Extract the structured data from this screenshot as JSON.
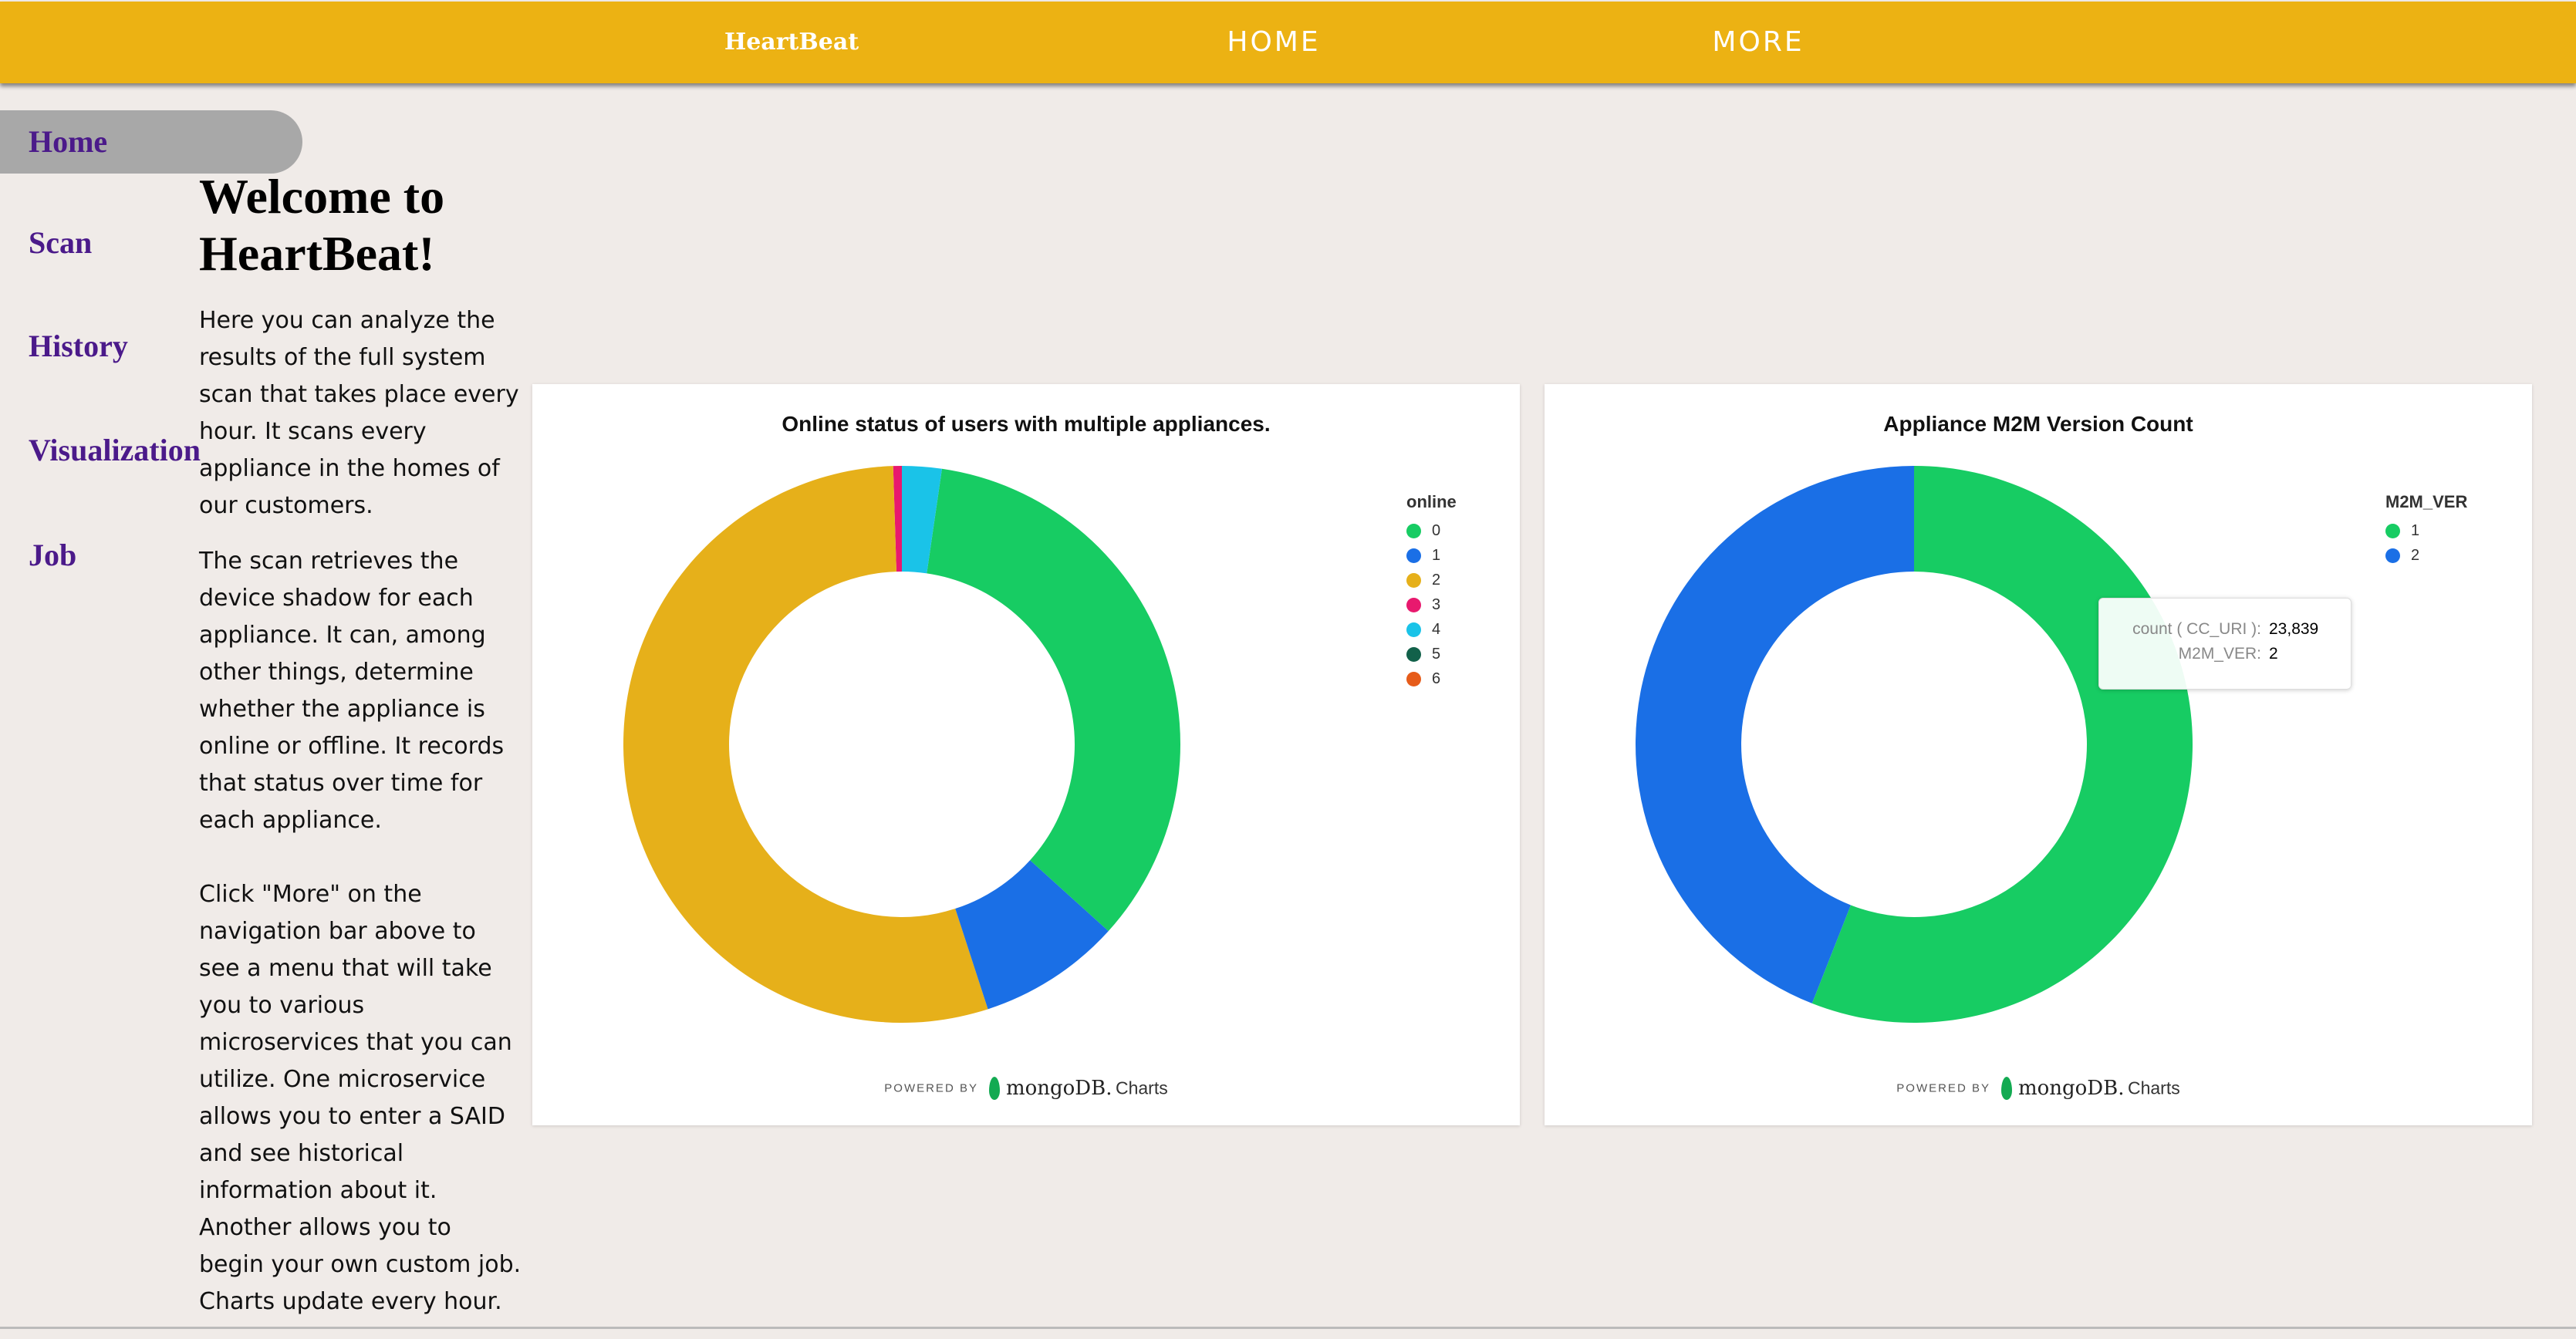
{
  "topbar": {
    "brand": "HeartBeat",
    "home": "HOME",
    "more": "MORE"
  },
  "sidebar": {
    "items": [
      {
        "label": "Home",
        "active": true
      },
      {
        "label": "Scan"
      },
      {
        "label": "History"
      },
      {
        "label": "Visualization"
      },
      {
        "label": "Job"
      }
    ]
  },
  "content": {
    "title": "Welcome to HeartBeat!",
    "p1": "Here you can analyze the results of the full system scan that takes place every hour. It scans every appliance in the homes of our customers.",
    "p2": "The scan retrieves the device shadow for each appliance. It can, among other things, determine whether the appliance is online or offline. It records that status over time for each appliance.",
    "p3": "Click \"More\" on the navigation bar above to see a menu that will take you to various microservices that you can utilize. One microservice allows you to enter a SAID and see historical information about it. Another allows you to begin your own custom job.",
    "p4": "Charts update every hour."
  },
  "footer": {
    "powered_by": "POWERED BY",
    "brand": "mongoDB.",
    "product": "Charts"
  },
  "tooltip": {
    "key1": "count ( CC_URI ):",
    "val1": "23,839",
    "key2": "M2M_VER:",
    "val2": "2"
  },
  "chart_data": [
    {
      "type": "pie",
      "title": "Online status of users with multiple appliances.",
      "legend_title": "online",
      "legend_placement": "top-right",
      "unit": "percent (estimated)",
      "slices": [
        {
          "label": "0",
          "value": 34.4,
          "color": "#17CC63"
        },
        {
          "label": "1",
          "value": 8.3,
          "color": "#1A6FE6"
        },
        {
          "label": "2",
          "value": 54.5,
          "color": "#E6B01A"
        },
        {
          "label": "3",
          "value": 0.5,
          "color": "#E8196E"
        },
        {
          "label": "4",
          "value": 2.3,
          "color": "#1AC3E8"
        },
        {
          "label": "5",
          "value": 0,
          "color": "#12614A"
        },
        {
          "label": "6",
          "value": 0,
          "color": "#E65C1A"
        }
      ],
      "draw_order": [
        "3",
        "2",
        "1",
        "0",
        "4"
      ]
    },
    {
      "type": "pie",
      "title": "Appliance M2M Version Count",
      "legend_title": "M2M_VER",
      "legend_placement": "top-right",
      "slices": [
        {
          "label": "1",
          "value": 30300,
          "color": "#17CC63"
        },
        {
          "label": "2",
          "value": 23839,
          "color": "#1A6FE6"
        }
      ],
      "draw_order": [
        "2",
        "1"
      ]
    }
  ]
}
